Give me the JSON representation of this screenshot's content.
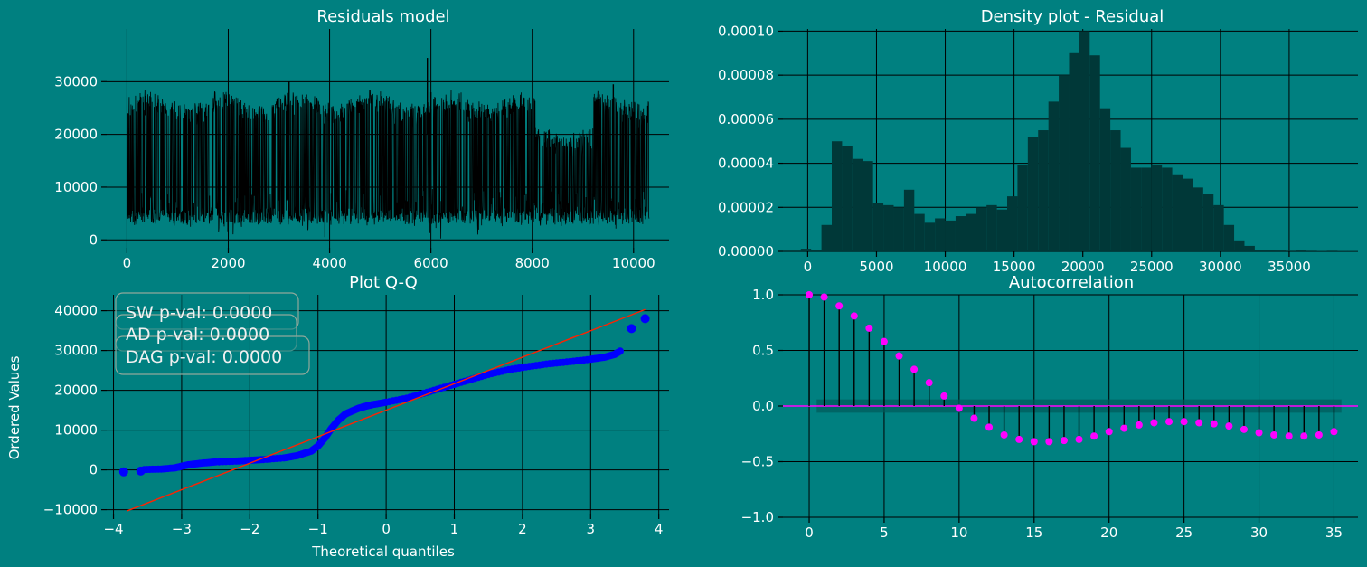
{
  "figure": {
    "background": "#008080",
    "text_color": "#ffffff"
  },
  "chart_data": [
    {
      "id": "residuals",
      "type": "line",
      "title": "Residuals model",
      "xlabel": "",
      "ylabel": "",
      "xlim": [
        -400,
        10700
      ],
      "ylim": [
        -1500,
        40000
      ],
      "xticks": [
        0,
        2000,
        4000,
        6000,
        8000,
        10000
      ],
      "xtick_labels": [
        "0",
        "2000",
        "4000",
        "6000",
        "8000",
        "10000"
      ],
      "yticks": [
        0,
        10000,
        20000,
        30000
      ],
      "ytick_labels": [
        "0",
        "10000",
        "20000",
        "30000"
      ],
      "grid": true,
      "series": [
        {
          "color": "#000000",
          "n_points": 10300,
          "min": -500,
          "max": 36000,
          "typical_low": 2500,
          "typical_high": 26000
        }
      ]
    },
    {
      "id": "density",
      "type": "bar",
      "title": "Density plot - Residual",
      "xlabel": "",
      "ylabel": "",
      "xlim": [
        -1800,
        40000
      ],
      "ylim": [
        0,
        0.000101
      ],
      "xticks": [
        0,
        5000,
        10000,
        15000,
        20000,
        25000,
        30000,
        35000
      ],
      "xtick_labels": [
        "0",
        "5000",
        "10000",
        "15000",
        "20000",
        "25000",
        "30000",
        "35000"
      ],
      "yticks": [
        0,
        2e-05,
        4e-05,
        6e-05,
        8e-05,
        0.0001
      ],
      "ytick_labels": [
        "0.00000",
        "0.00002",
        "0.00004",
        "0.00006",
        "0.00008",
        "0.00010"
      ],
      "grid": true,
      "bin_start": -500,
      "bin_width": 750,
      "values": [
        1.2e-06,
        8e-07,
        1.2e-05,
        5e-05,
        4.8e-05,
        4.2e-05,
        4.1e-05,
        2.2e-05,
        2.1e-05,
        2e-05,
        2.8e-05,
        1.7e-05,
        1.3e-05,
        1.5e-05,
        1.4e-05,
        1.6e-05,
        1.7e-05,
        2e-05,
        2.1e-05,
        1.9e-05,
        2.5e-05,
        3.9e-05,
        5.2e-05,
        5.5e-05,
        6.8e-05,
        8e-05,
        9e-05,
        0.0001,
        8.9e-05,
        6.5e-05,
        5.5e-05,
        4.7e-05,
        3.8e-05,
        3.8e-05,
        3.9e-05,
        3.8e-05,
        3.5e-05,
        3.3e-05,
        2.9e-05,
        2.6e-05,
        2.1e-05,
        1.2e-05,
        5e-06,
        2.5e-06,
        7e-07,
        7e-07,
        4e-07,
        3e-07,
        4e-07,
        3e-07,
        2e-07,
        3e-07,
        2e-07,
        2e-07,
        2e-07,
        2e-07,
        2e-07,
        2e-07,
        2e-07,
        1e-07,
        1e-07,
        1e-07,
        1e-07,
        1e-07,
        1e-07,
        1e-07,
        1e-07,
        1e-07,
        1e-07,
        1e-07
      ],
      "color": "#003838"
    },
    {
      "id": "qq",
      "type": "scatter",
      "title": "Plot Q-Q",
      "xlabel": "Theoretical quantiles",
      "ylabel": "Ordered Values",
      "xlim": [
        -4.1,
        4.15
      ],
      "ylim": [
        -11000,
        44000
      ],
      "xticks": [
        -4,
        -3,
        -2,
        -1,
        0,
        1,
        2,
        3,
        4
      ],
      "xtick_labels": [
        "−4",
        "−3",
        "−2",
        "−1",
        "0",
        "1",
        "2",
        "3",
        "4"
      ],
      "yticks": [
        -10000,
        0,
        10000,
        20000,
        30000,
        40000
      ],
      "ytick_labels": [
        "−10000",
        "0",
        "10000",
        "20000",
        "30000",
        "40000"
      ],
      "grid": true,
      "point_color": "#0000ff",
      "line_color": "#ff2200",
      "fit_line": {
        "x": [
          -3.8,
          3.8
        ],
        "y": [
          -10300,
          40300
        ]
      },
      "curve": {
        "x": [
          -3.55,
          -3.3,
          -3.1,
          -3.0,
          -2.9,
          -2.7,
          -2.5,
          -2.2,
          -2.0,
          -1.8,
          -1.5,
          -1.3,
          -1.1,
          -1.0,
          -0.9,
          -0.8,
          -0.7,
          -0.6,
          -0.5,
          -0.4,
          -0.3,
          -0.2,
          0.0,
          0.3,
          0.6,
          0.9,
          1.2,
          1.5,
          1.8,
          2.1,
          2.4,
          2.7,
          3.0,
          3.2,
          3.35,
          3.45
        ],
        "y": [
          100,
          200,
          500,
          900,
          1300,
          1700,
          2000,
          2200,
          2400,
          2600,
          3000,
          3600,
          4700,
          6000,
          8000,
          10500,
          12500,
          14000,
          14800,
          15500,
          16000,
          16400,
          17000,
          18000,
          19500,
          21000,
          22500,
          24000,
          25200,
          26000,
          26700,
          27200,
          27800,
          28300,
          29000,
          30000
        ]
      },
      "outliers": [
        {
          "x": -3.85,
          "y": -500
        },
        {
          "x": -3.6,
          "y": -300
        },
        {
          "x": 3.6,
          "y": 35500
        },
        {
          "x": 3.8,
          "y": 38000
        }
      ],
      "annotations": [
        "SW p-val: 0.0000",
        "AD p-val: 0.0000",
        "DAG p-val: 0.0000"
      ]
    },
    {
      "id": "acf",
      "type": "scatter",
      "title": "Autocorrelation",
      "xlabel": "",
      "ylabel": "",
      "xlim": [
        -1.75,
        36.6
      ],
      "ylim": [
        -1.0,
        1.0
      ],
      "xticks": [
        0,
        5,
        10,
        15,
        20,
        25,
        30,
        35
      ],
      "xtick_labels": [
        "0",
        "5",
        "10",
        "15",
        "20",
        "25",
        "30",
        "35"
      ],
      "yticks": [
        -1.0,
        -0.5,
        0.0,
        0.5,
        1.0
      ],
      "ytick_labels": [
        "−1.0",
        "−0.5",
        "0.0",
        "0.5",
        "1.0"
      ],
      "grid": true,
      "marker_color": "#ff00ff",
      "confidence_band": 0.06,
      "lags": [
        0,
        1,
        2,
        3,
        4,
        5,
        6,
        7,
        8,
        9,
        10,
        11,
        12,
        13,
        14,
        15,
        16,
        17,
        18,
        19,
        20,
        21,
        22,
        23,
        24,
        25,
        26,
        27,
        28,
        29,
        30,
        31,
        32,
        33,
        34,
        35
      ],
      "values": [
        1.0,
        0.98,
        0.9,
        0.81,
        0.7,
        0.58,
        0.45,
        0.33,
        0.21,
        0.09,
        -0.02,
        -0.11,
        -0.19,
        -0.26,
        -0.3,
        -0.32,
        -0.32,
        -0.31,
        -0.3,
        -0.27,
        -0.23,
        -0.2,
        -0.17,
        -0.15,
        -0.14,
        -0.14,
        -0.15,
        -0.16,
        -0.18,
        -0.21,
        -0.24,
        -0.26,
        -0.27,
        -0.27,
        -0.26,
        -0.23
      ]
    }
  ]
}
